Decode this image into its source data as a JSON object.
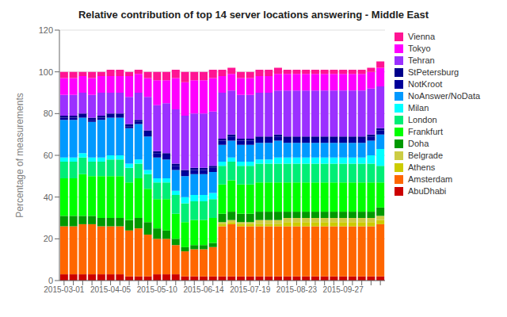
{
  "chart_data": {
    "type": "bar",
    "title": "Relative contribution of top 14 server locations answering -  Middle East",
    "ylabel": "Percentage of measurements",
    "categories": [
      "2015-03-01",
      null,
      null,
      null,
      null,
      "2015-04-05",
      null,
      null,
      null,
      null,
      "2015-05-10",
      null,
      null,
      null,
      null,
      "2015-06-14",
      null,
      null,
      null,
      null,
      "2015-07-19",
      null,
      null,
      null,
      null,
      "2015-08-23",
      null,
      null,
      null,
      null,
      "2015-09-27",
      null,
      null,
      null,
      null
    ],
    "series": [
      {
        "name": "AbuDhabi",
        "color": "#CC0000",
        "values": [
          3,
          3,
          3,
          3,
          3,
          3,
          3,
          2,
          2,
          2,
          3,
          3,
          3,
          2,
          2,
          2,
          2,
          2,
          2,
          2,
          2,
          2,
          2,
          2,
          2,
          2,
          2,
          2,
          2,
          2,
          2,
          2,
          2,
          2,
          2
        ]
      },
      {
        "name": "Amsterdam",
        "color": "#FF6600",
        "values": [
          23,
          23,
          24,
          24,
          23,
          23,
          23,
          22,
          23,
          20,
          17,
          17,
          14,
          12,
          13,
          13,
          14,
          24,
          25,
          24,
          24,
          24,
          24,
          24,
          24,
          24,
          24,
          24,
          24,
          24,
          24,
          24,
          24,
          24,
          25
        ]
      },
      {
        "name": "Athens",
        "color": "#CCCC00",
        "values": [
          0,
          0,
          0,
          0,
          0,
          0,
          0,
          0,
          0,
          0,
          0,
          0,
          0,
          0,
          0,
          0,
          0,
          1,
          1,
          1,
          1,
          1,
          1,
          1,
          2,
          2,
          2,
          2,
          2,
          2,
          2,
          2,
          2,
          2,
          2
        ]
      },
      {
        "name": "Belgrade",
        "color": "#CCCC44",
        "values": [
          0,
          0,
          0,
          0,
          0,
          0,
          0,
          0,
          0,
          0,
          0,
          0,
          0,
          0,
          0,
          0,
          0,
          1,
          1,
          1,
          1,
          2,
          2,
          2,
          2,
          2,
          2,
          2,
          2,
          2,
          2,
          2,
          2,
          2,
          2
        ]
      },
      {
        "name": "Doha",
        "color": "#009900",
        "values": [
          5,
          5,
          4,
          4,
          4,
          4,
          4,
          5,
          5,
          6,
          5,
          4,
          3,
          2,
          2,
          2,
          2,
          4,
          4,
          4,
          4,
          4,
          4,
          4,
          3,
          3,
          3,
          3,
          3,
          3,
          3,
          3,
          3,
          3,
          4
        ]
      },
      {
        "name": "Frankfurt",
        "color": "#00FF00",
        "values": [
          18,
          18,
          20,
          19,
          20,
          20,
          20,
          18,
          19,
          16,
          14,
          15,
          12,
          12,
          12,
          12,
          12,
          14,
          15,
          14,
          14,
          14,
          14,
          14,
          14,
          14,
          14,
          14,
          14,
          14,
          14,
          14,
          14,
          14,
          12
        ]
      },
      {
        "name": "London",
        "color": "#00EE76",
        "values": [
          8,
          8,
          8,
          7,
          7,
          8,
          8,
          7,
          7,
          7,
          8,
          8,
          9,
          9,
          9,
          9,
          9,
          9,
          9,
          9,
          9,
          9,
          9,
          9,
          9,
          9,
          9,
          9,
          9,
          9,
          9,
          9,
          9,
          9,
          8
        ]
      },
      {
        "name": "Milan",
        "color": "#00FFFF",
        "values": [
          2,
          2,
          2,
          2,
          2,
          2,
          2,
          2,
          2,
          2,
          2,
          2,
          2,
          3,
          3,
          3,
          3,
          2,
          2,
          2,
          2,
          2,
          2,
          3,
          3,
          3,
          3,
          3,
          3,
          3,
          3,
          3,
          3,
          4,
          8
        ]
      },
      {
        "name": "NoAnswer/NoData",
        "color": "#0099FF",
        "values": [
          18,
          18,
          17,
          17,
          18,
          18,
          18,
          17,
          17,
          16,
          10,
          9,
          10,
          10,
          10,
          10,
          10,
          8,
          8,
          8,
          8,
          8,
          8,
          8,
          7,
          7,
          7,
          7,
          7,
          7,
          7,
          7,
          7,
          7,
          7
        ]
      },
      {
        "name": "NotKroot",
        "color": "#000099",
        "values": [
          1,
          1,
          1,
          1,
          1,
          1,
          1,
          1,
          1,
          2,
          2,
          2,
          2,
          2,
          2,
          2,
          2,
          2,
          2,
          2,
          2,
          2,
          2,
          2,
          2,
          2,
          2,
          2,
          2,
          2,
          2,
          2,
          2,
          2,
          2
        ]
      },
      {
        "name": "StPetersburg",
        "color": "#00008B",
        "values": [
          1,
          1,
          1,
          1,
          1,
          1,
          1,
          1,
          1,
          1,
          1,
          1,
          1,
          1,
          1,
          1,
          1,
          1,
          1,
          1,
          1,
          1,
          1,
          1,
          1,
          1,
          1,
          1,
          1,
          1,
          1,
          1,
          1,
          1,
          1
        ]
      },
      {
        "name": "Tehran",
        "color": "#9B30FF",
        "values": [
          10,
          10,
          10,
          11,
          11,
          10,
          10,
          13,
          13,
          16,
          22,
          24,
          26,
          26,
          26,
          26,
          26,
          22,
          21,
          21,
          21,
          21,
          21,
          21,
          22,
          22,
          22,
          22,
          22,
          22,
          22,
          22,
          22,
          22,
          20
        ]
      },
      {
        "name": "Tokyo",
        "color": "#FF00FF",
        "values": [
          8,
          8,
          8,
          8,
          8,
          8,
          8,
          10,
          9,
          9,
          12,
          11,
          15,
          16,
          16,
          16,
          16,
          8,
          8,
          8,
          8,
          8,
          8,
          8,
          8,
          8,
          8,
          8,
          8,
          8,
          8,
          8,
          8,
          8,
          9
        ]
      },
      {
        "name": "Vienna",
        "color": "#FF1493",
        "values": [
          3,
          3,
          2,
          3,
          2,
          3,
          3,
          2,
          2,
          3,
          4,
          4,
          4,
          5,
          4,
          4,
          4,
          3,
          3,
          3,
          3,
          3,
          3,
          3,
          2,
          2,
          2,
          2,
          2,
          2,
          2,
          2,
          2,
          2,
          3
        ]
      }
    ],
    "ylim": [
      0,
      120
    ],
    "yticks": [
      0,
      20,
      40,
      60,
      80,
      100,
      120
    ],
    "stacked": true,
    "grid": true,
    "legend": "right"
  }
}
